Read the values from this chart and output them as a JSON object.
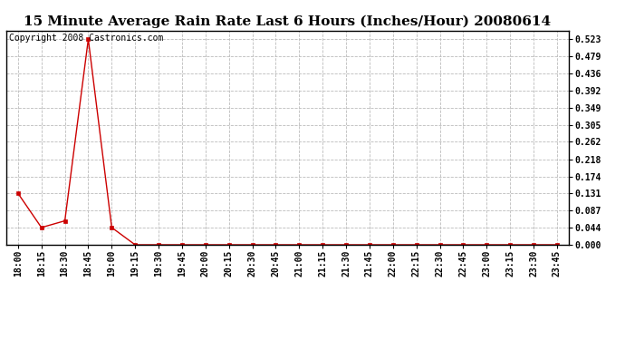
{
  "title": "15 Minute Average Rain Rate Last 6 Hours (Inches/Hour) 20080614",
  "copyright_text": "Copyright 2008 Castronics.com",
  "background_color": "#ffffff",
  "plot_bg_color": "#ffffff",
  "line_color": "#cc0000",
  "marker_color": "#cc0000",
  "grid_color": "#bbbbbb",
  "x_labels": [
    "18:00",
    "18:15",
    "18:30",
    "18:45",
    "19:00",
    "19:15",
    "19:30",
    "19:45",
    "20:00",
    "20:15",
    "20:30",
    "20:45",
    "21:00",
    "21:15",
    "21:30",
    "21:45",
    "22:00",
    "22:15",
    "22:30",
    "22:45",
    "23:00",
    "23:15",
    "23:30",
    "23:45"
  ],
  "y_values": [
    0.131,
    0.044,
    0.061,
    0.523,
    0.044,
    0.0,
    0.0,
    0.0,
    0.0,
    0.0,
    0.0,
    0.0,
    0.0,
    0.0,
    0.0,
    0.0,
    0.0,
    0.0,
    0.0,
    0.0,
    0.0,
    0.0,
    0.0,
    0.0
  ],
  "y_ticks": [
    0.0,
    0.044,
    0.087,
    0.131,
    0.174,
    0.218,
    0.262,
    0.305,
    0.349,
    0.392,
    0.436,
    0.479,
    0.523
  ],
  "ylim": [
    0.0,
    0.545
  ],
  "title_fontsize": 11,
  "tick_fontsize": 7,
  "copyright_fontsize": 7
}
